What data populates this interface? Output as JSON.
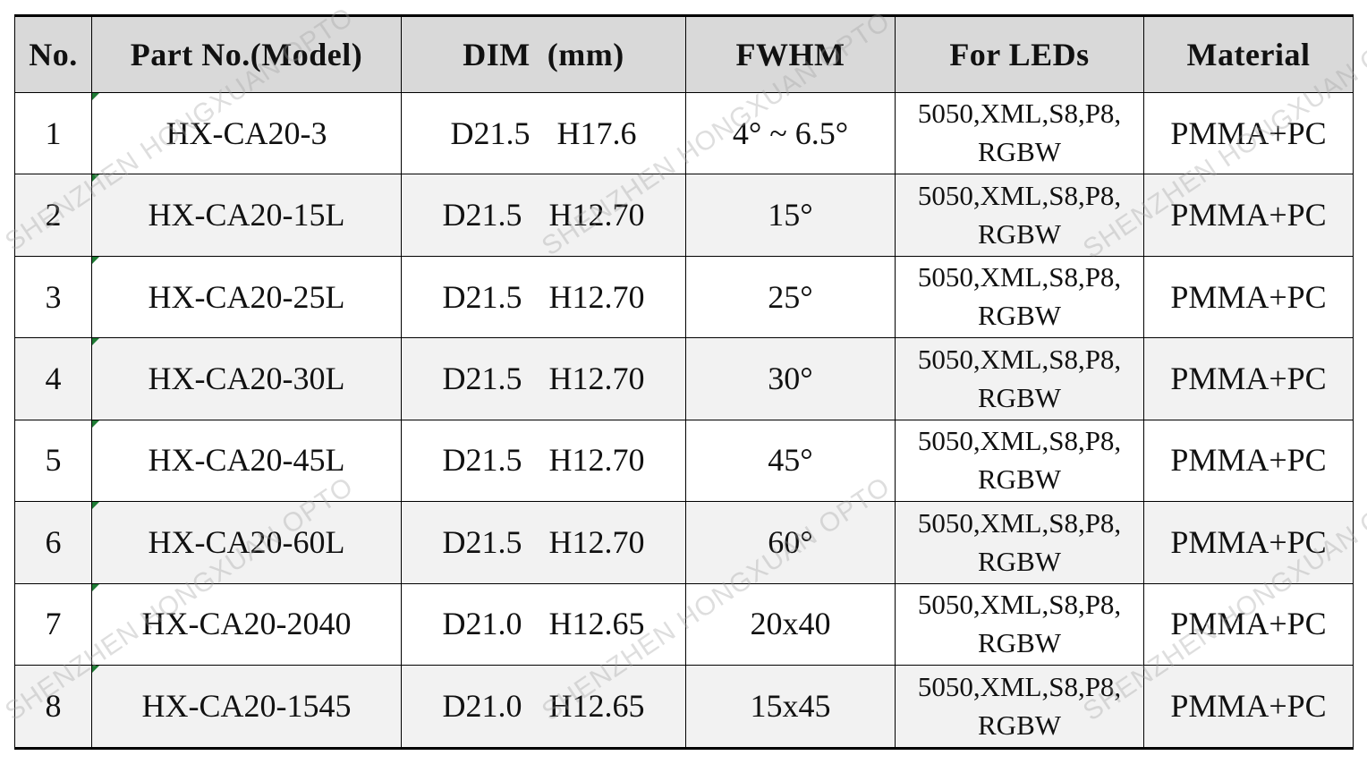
{
  "table": {
    "headers": [
      "No.",
      "Part No.(Model)",
      "DIM  (mm)",
      "FWHM",
      "For LEDs",
      "Material"
    ],
    "rows": [
      {
        "no": "1",
        "model": "HX-CA20-3",
        "dim_d": "D21.5",
        "dim_h": "H17.6",
        "fwhm": "4° ~ 6.5°",
        "leds_line1": "5050,XML,S8,P8,",
        "leds_line2": "RGBW",
        "material": "PMMA+PC"
      },
      {
        "no": "2",
        "model": "HX-CA20-15L",
        "dim_d": "D21.5",
        "dim_h": "H12.70",
        "fwhm": "15°",
        "leds_line1": "5050,XML,S8,P8,",
        "leds_line2": "RGBW",
        "material": "PMMA+PC"
      },
      {
        "no": "3",
        "model": "HX-CA20-25L",
        "dim_d": "D21.5",
        "dim_h": "H12.70",
        "fwhm": "25°",
        "leds_line1": "5050,XML,S8,P8,",
        "leds_line2": "RGBW",
        "material": "PMMA+PC"
      },
      {
        "no": "4",
        "model": "HX-CA20-30L",
        "dim_d": "D21.5",
        "dim_h": "H12.70",
        "fwhm": "30°",
        "leds_line1": "5050,XML,S8,P8,",
        "leds_line2": "RGBW",
        "material": "PMMA+PC"
      },
      {
        "no": "5",
        "model": "HX-CA20-45L",
        "dim_d": "D21.5",
        "dim_h": "H12.70",
        "fwhm": "45°",
        "leds_line1": "5050,XML,S8,P8,",
        "leds_line2": "RGBW",
        "material": "PMMA+PC"
      },
      {
        "no": "6",
        "model": "HX-CA20-60L",
        "dim_d": "D21.5",
        "dim_h": "H12.70",
        "fwhm": "60°",
        "leds_line1": "5050,XML,S8,P8,",
        "leds_line2": "RGBW",
        "material": "PMMA+PC"
      },
      {
        "no": "7",
        "model": "HX-CA20-2040",
        "dim_d": "D21.0",
        "dim_h": "H12.65",
        "fwhm": "20x40",
        "leds_line1": "5050,XML,S8,P8,",
        "leds_line2": "RGBW",
        "material": "PMMA+PC"
      },
      {
        "no": "8",
        "model": "HX-CA20-1545",
        "dim_d": "D21.0",
        "dim_h": "H12.65",
        "fwhm": "15x45",
        "leds_line1": "5050,XML,S8,P8,",
        "leds_line2": "RGBW",
        "material": "PMMA+PC"
      }
    ]
  },
  "watermark": {
    "text": "SHENZHEN HONGXUAN OPTO"
  },
  "colors": {
    "header_bg": "#d9d9d9",
    "alt_row_bg": "#f2f2f2",
    "corner_mark": "#1e7b34"
  }
}
